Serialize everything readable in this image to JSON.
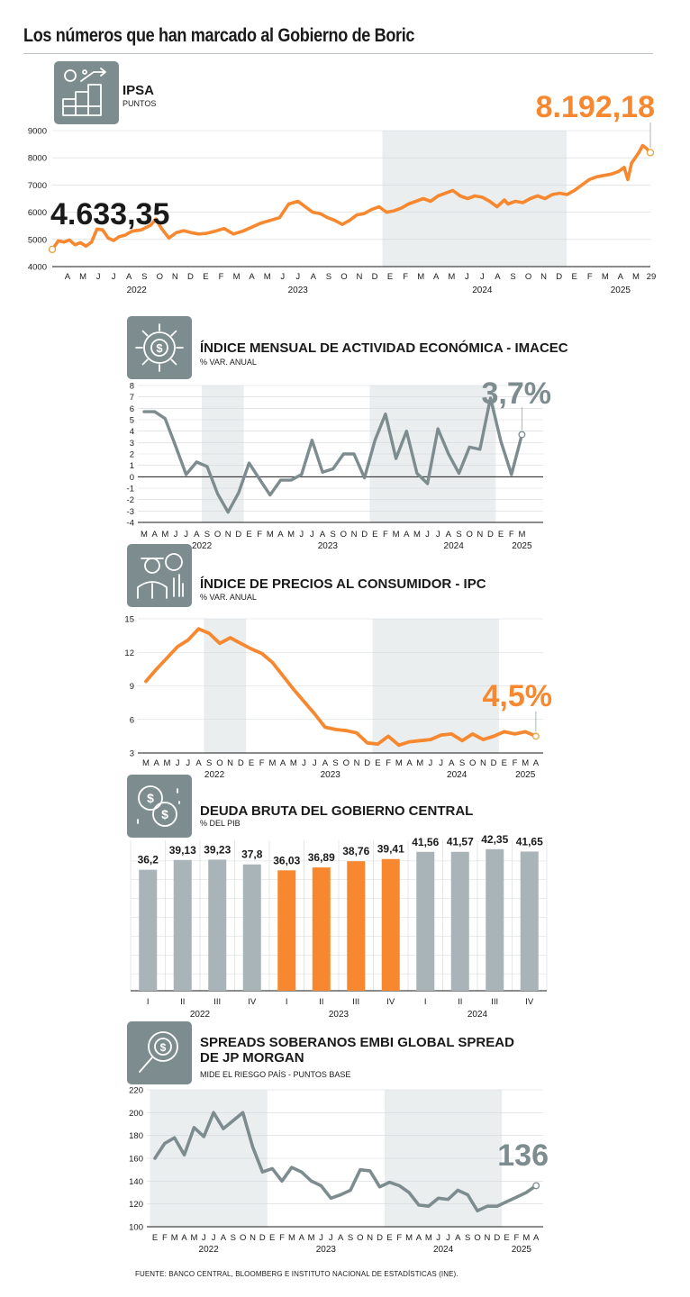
{
  "page": {
    "title": "Los números que han marcado al Gobierno de Boric",
    "source": "FUENTE: BANCO CENTRAL, BLOOMBERG E INSTITUTO NACIONAL DE ESTADÍSTICAS (INE)."
  },
  "colors": {
    "orange": "#f7882f",
    "gray": "#7d8c8f",
    "bar_gray": "#a9b4b9",
    "shade": "#ebeeef"
  },
  "chart_data": [
    {
      "id": "ipsa",
      "type": "line",
      "title": "IPSA",
      "subtitle": "PUNTOS",
      "icon": "chart-growth-icon",
      "ylim": [
        4000,
        9000
      ],
      "yticks": [
        4000,
        5000,
        6000,
        7000,
        8000,
        9000
      ],
      "x_range": [
        2022.167,
        2025.412
      ],
      "month_labels": [
        "A",
        "M",
        "J",
        "J",
        "A",
        "S",
        "O",
        "N",
        "D",
        "E",
        "F",
        "M",
        "A",
        "M",
        "J",
        "J",
        "A",
        "S",
        "O",
        "N",
        "D",
        "E",
        "F",
        "M",
        "A",
        "M",
        "J",
        "J",
        "A",
        "S",
        "O",
        "N",
        "D",
        "E",
        "F",
        "M",
        "A",
        "M",
        "29"
      ],
      "month_start": 2022.25,
      "years": [
        {
          "label": "2022",
          "x": 2022.625
        },
        {
          "label": "2023",
          "x": 2023.5
        },
        {
          "label": "2024",
          "x": 2024.5
        },
        {
          "label": "2025",
          "x": 2025.25
        }
      ],
      "shade": [
        [
          2023.958,
          2024.958
        ]
      ],
      "first_label": "4.633,35",
      "last_label": "8.192,18",
      "color": "#f7882f",
      "x": [
        2022.167,
        2022.2,
        2022.23,
        2022.26,
        2022.29,
        2022.32,
        2022.35,
        2022.38,
        2022.41,
        2022.44,
        2022.47,
        2022.5,
        2022.53,
        2022.56,
        2022.6,
        2022.65,
        2022.7,
        2022.73,
        2022.76,
        2022.8,
        2022.84,
        2022.88,
        2022.92,
        2022.96,
        2023.0,
        2023.05,
        2023.1,
        2023.15,
        2023.2,
        2023.25,
        2023.3,
        2023.35,
        2023.4,
        2023.45,
        2023.5,
        2023.54,
        2023.58,
        2023.62,
        2023.66,
        2023.7,
        2023.74,
        2023.78,
        2023.82,
        2023.86,
        2023.9,
        2023.94,
        2023.98,
        2024.02,
        2024.06,
        2024.1,
        2024.14,
        2024.18,
        2024.22,
        2024.26,
        2024.3,
        2024.34,
        2024.38,
        2024.42,
        2024.46,
        2024.5,
        2024.54,
        2024.58,
        2024.62,
        2024.64,
        2024.68,
        2024.72,
        2024.76,
        2024.8,
        2024.84,
        2024.88,
        2024.92,
        2024.96,
        2025.0,
        2025.04,
        2025.08,
        2025.12,
        2025.16,
        2025.2,
        2025.24,
        2025.27,
        2025.29,
        2025.31,
        2025.33,
        2025.35,
        2025.37,
        2025.39,
        2025.412
      ],
      "values": [
        4633,
        4950,
        4900,
        4980,
        4800,
        4880,
        4750,
        4900,
        5380,
        5350,
        5050,
        4960,
        5100,
        5150,
        5300,
        5350,
        5520,
        5750,
        5400,
        5050,
        5250,
        5320,
        5250,
        5200,
        5220,
        5300,
        5400,
        5200,
        5300,
        5450,
        5600,
        5700,
        5800,
        6300,
        6400,
        6200,
        6000,
        5950,
        5800,
        5700,
        5550,
        5700,
        5900,
        5950,
        6100,
        6200,
        6000,
        6050,
        6150,
        6300,
        6400,
        6500,
        6400,
        6600,
        6700,
        6800,
        6600,
        6500,
        6600,
        6550,
        6400,
        6200,
        6450,
        6300,
        6400,
        6350,
        6500,
        6600,
        6500,
        6650,
        6700,
        6650,
        6800,
        7000,
        7200,
        7300,
        7350,
        7400,
        7500,
        7650,
        7200,
        7800,
        8000,
        8200,
        8450,
        8350,
        8192
      ]
    },
    {
      "id": "imacec",
      "type": "line",
      "title": "ÍNDICE MENSUAL DE ACTIVIDAD ECONÓMICA - IMACEC",
      "subtitle": "% VAR. ANUAL",
      "icon": "gear-dollar-icon",
      "ylim": [
        -4,
        8
      ],
      "yticks": [
        -4,
        -3,
        -2,
        -1,
        0,
        1,
        2,
        3,
        4,
        5,
        6,
        7,
        8
      ],
      "month_labels": [
        "M",
        "A",
        "M",
        "J",
        "J",
        "A",
        "S",
        "O",
        "N",
        "D",
        "E",
        "F",
        "M",
        "A",
        "M",
        "J",
        "J",
        "A",
        "S",
        "O",
        "N",
        "D",
        "E",
        "F",
        "M",
        "A",
        "M",
        "J",
        "J",
        "A",
        "S",
        "O",
        "N",
        "D",
        "E",
        "F",
        "M"
      ],
      "years": [
        {
          "label": "2022",
          "i": 5.5
        },
        {
          "label": "2023",
          "i": 17.5
        },
        {
          "label": "2024",
          "i": 29.5
        },
        {
          "label": "2025",
          "i": 36
        }
      ],
      "shade_idx": [
        [
          5.5,
          9.5
        ],
        [
          21.5,
          33.5
        ]
      ],
      "last_label": "3,7%",
      "color": "#7d8c8f",
      "values": [
        5.7,
        5.7,
        5.1,
        2.7,
        0.2,
        1.3,
        0.9,
        -1.5,
        -3.1,
        -1.4,
        1.2,
        -0.2,
        -1.6,
        -0.3,
        -0.3,
        0.2,
        3.2,
        0.4,
        0.7,
        2.0,
        2.0,
        -0.1,
        3.2,
        5.5,
        1.6,
        4.0,
        0.3,
        -0.6,
        4.2,
        2.0,
        0.3,
        2.6,
        2.4,
        6.9,
        3.1,
        0.2,
        3.7
      ]
    },
    {
      "id": "ipc",
      "type": "line",
      "title": "ÍNDICE DE PRECIOS AL CONSUMIDOR - IPC",
      "subtitle": "% VAR. ANUAL",
      "icon": "worker-chart-icon",
      "ylim": [
        3,
        15
      ],
      "yticks": [
        3,
        6,
        9,
        12,
        15
      ],
      "month_labels": [
        "M",
        "A",
        "M",
        "J",
        "J",
        "A",
        "S",
        "O",
        "N",
        "D",
        "E",
        "F",
        "M",
        "A",
        "M",
        "J",
        "J",
        "A",
        "S",
        "O",
        "N",
        "D",
        "E",
        "F",
        "M",
        "A",
        "M",
        "J",
        "J",
        "A",
        "S",
        "O",
        "N",
        "D",
        "E",
        "F",
        "M",
        "A"
      ],
      "years": [
        {
          "label": "2022",
          "i": 6.5
        },
        {
          "label": "2023",
          "i": 17.5
        },
        {
          "label": "2024",
          "i": 29.5
        },
        {
          "label": "2025",
          "i": 36
        }
      ],
      "shade_idx": [
        [
          5.5,
          9.5
        ],
        [
          21.5,
          33.5
        ]
      ],
      "last_label": "4,5%",
      "color": "#f7882f",
      "values": [
        9.4,
        10.5,
        11.5,
        12.5,
        13.1,
        14.1,
        13.7,
        12.8,
        13.3,
        12.8,
        12.3,
        11.9,
        11.1,
        9.9,
        8.7,
        7.6,
        6.5,
        5.3,
        5.1,
        5.0,
        4.8,
        3.9,
        3.8,
        4.5,
        3.7,
        4.0,
        4.1,
        4.2,
        4.6,
        4.7,
        4.1,
        4.7,
        4.2,
        4.5,
        4.9,
        4.7,
        4.9,
        4.5
      ]
    },
    {
      "id": "deuda",
      "type": "bar",
      "title": "DEUDA BRUTA DEL GOBIERNO CENTRAL",
      "subtitle": "% DEL PIB",
      "icon": "coins-icon",
      "ylim": [
        0,
        45
      ],
      "categories": [
        "I",
        "II",
        "III",
        "IV",
        "I",
        "II",
        "III",
        "IV",
        "I",
        "II",
        "III",
        "IV"
      ],
      "years": [
        {
          "label": "2022",
          "i": 1.5
        },
        {
          "label": "2023",
          "i": 5.5
        },
        {
          "label": "2024",
          "i": 9.5
        }
      ],
      "values": [
        36.2,
        39.13,
        39.23,
        37.8,
        36.03,
        36.89,
        38.76,
        39.41,
        41.56,
        41.57,
        42.35,
        41.65
      ],
      "labels": [
        "36,2",
        "39,13",
        "39,23",
        "37,8",
        "36,03",
        "36,89",
        "38,76",
        "39,41",
        "41,56",
        "41,57",
        "42,35",
        "41,65"
      ],
      "highlight": [
        false,
        false,
        false,
        false,
        true,
        true,
        true,
        true,
        false,
        false,
        false,
        false
      ]
    },
    {
      "id": "embi",
      "type": "line",
      "title": "SPREADS SOBERANOS EMBI GLOBAL SPREAD",
      "title2": "DE JP MORGAN",
      "subtitle": "MIDE EL RIESGO PAÍS - PUNTOS BASE",
      "icon": "magnifier-dollar-icon",
      "ylim": [
        100,
        220
      ],
      "yticks": [
        100,
        120,
        140,
        160,
        180,
        200,
        220
      ],
      "month_labels": [
        "E",
        "F",
        "M",
        "A",
        "M",
        "J",
        "J",
        "A",
        "S",
        "O",
        "N",
        "D",
        "E",
        "F",
        "M",
        "A",
        "M",
        "J",
        "J",
        "A",
        "S",
        "O",
        "N",
        "D",
        "E",
        "F",
        "M",
        "A",
        "M",
        "J",
        "J",
        "A",
        "S",
        "O",
        "N",
        "D",
        "E",
        "F",
        "M",
        "A"
      ],
      "years": [
        {
          "label": "2022",
          "i": 5.5
        },
        {
          "label": "2023",
          "i": 17.5
        },
        {
          "label": "2024",
          "i": 29.5
        },
        {
          "label": "2025",
          "i": 37.5
        }
      ],
      "shade_idx": [
        [
          -0.5,
          11.5
        ],
        [
          23.5,
          35.5
        ]
      ],
      "last_label": "136",
      "color": "#7d8c8f",
      "values": [
        160,
        173,
        178,
        163,
        187,
        179,
        200,
        186,
        193,
        200,
        170,
        148,
        151,
        140,
        152,
        148,
        140,
        136,
        125,
        128,
        132,
        150,
        149,
        135,
        139,
        136,
        130,
        119,
        118,
        125,
        124,
        132,
        128,
        114,
        118,
        118,
        122,
        126,
        130,
        136
      ]
    }
  ]
}
